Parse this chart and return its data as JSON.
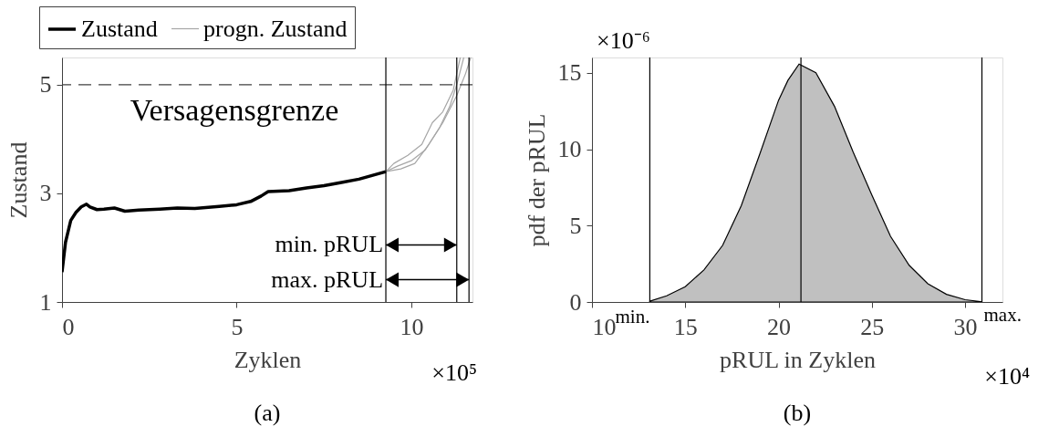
{
  "chart_data": [
    {
      "type": "line",
      "xlabel": "Zyklen",
      "ylabel": "Zustand",
      "xlim": [
        0,
        11.75
      ],
      "ylim": [
        1,
        5.5
      ],
      "xticks": [
        0,
        5,
        10
      ],
      "yticks": [
        1,
        3,
        5
      ],
      "grid": false,
      "legend": "top",
      "series": [
        {
          "name": "Zustand",
          "color": "#000000",
          "x": [
            0,
            0.1,
            0.25,
            0.4,
            0.55,
            0.7,
            0.8,
            1.0,
            1.2,
            1.5,
            1.8,
            2.2,
            2.8,
            3.3,
            3.8,
            4.5,
            5.0,
            5.4,
            5.7,
            5.9,
            6.5,
            7.0,
            7.5,
            8.0,
            8.5,
            9.27
          ],
          "values": [
            1.55,
            2.1,
            2.5,
            2.65,
            2.75,
            2.8,
            2.75,
            2.7,
            2.71,
            2.73,
            2.67,
            2.69,
            2.71,
            2.73,
            2.72,
            2.76,
            2.79,
            2.85,
            2.95,
            3.03,
            3.05,
            3.1,
            3.14,
            3.2,
            3.26,
            3.4
          ]
        },
        {
          "name": "progn. Zustand",
          "color": "#a6a6a6",
          "x": [
            9.27,
            9.6,
            10.0,
            10.4,
            10.8,
            11.1,
            11.3,
            11.5
          ],
          "values": [
            3.4,
            3.5,
            3.6,
            3.8,
            4.2,
            4.6,
            5.0,
            5.5
          ]
        },
        {
          "color": "#a6a6a6",
          "x": [
            9.27,
            9.7,
            10.1,
            10.5,
            10.9,
            11.3,
            11.55,
            11.7
          ],
          "values": [
            3.4,
            3.45,
            3.55,
            3.9,
            4.3,
            4.8,
            5.2,
            5.5
          ]
        },
        {
          "color": "#a6a6a6",
          "x": [
            9.27,
            9.5,
            9.9,
            10.3,
            10.6,
            10.9,
            11.2,
            11.4
          ],
          "values": [
            3.4,
            3.55,
            3.7,
            3.9,
            4.3,
            4.5,
            4.9,
            5.5
          ]
        }
      ],
      "ref_lines": [
        {
          "axis": "y",
          "value": 5,
          "label": "Versagensgrenze",
          "color": "#404040",
          "line_style": "dashed"
        },
        {
          "axis": "x",
          "value": 9.27,
          "color": "#000000"
        },
        {
          "axis": "x",
          "value": 11.3,
          "color": "#000000"
        },
        {
          "axis": "x",
          "value": 11.65,
          "color": "#000000"
        }
      ],
      "annotations": [
        {
          "text": "min. pRUL",
          "x": 9.27,
          "y": 2.05
        },
        {
          "text": "max. pRUL",
          "x": 9.27,
          "y": 1.41
        },
        "×10⁵",
        "(a)"
      ]
    },
    {
      "type": "area",
      "xlabel": "pRUL in Zyklen",
      "ylabel": "pdf der  pRUL",
      "xlim": [
        10,
        32
      ],
      "ylim": [
        0,
        16
      ],
      "xticks": [
        10,
        15,
        20,
        25,
        30
      ],
      "yticks": [
        0,
        5,
        10,
        15
      ],
      "grid": false,
      "legend": false,
      "series": [
        {
          "color": "#c0c0c0",
          "x": [
            13.1,
            14,
            15,
            16,
            17,
            18,
            19,
            20,
            20.5,
            21.1,
            22,
            23,
            24,
            25,
            26,
            27,
            28,
            29,
            30,
            30.9
          ],
          "values": [
            0.05,
            0.4,
            1.0,
            2.1,
            3.7,
            6.3,
            9.7,
            13.2,
            14.5,
            15.57,
            15.0,
            12.8,
            9.8,
            7.0,
            4.3,
            2.4,
            1.2,
            0.5,
            0.15,
            0.02
          ]
        }
      ],
      "ref_lines": [
        {
          "axis": "x",
          "value": 13.1,
          "color": "#000000"
        },
        {
          "axis": "x",
          "value": 21.2,
          "color": "#000000"
        },
        {
          "axis": "x",
          "value": 30.9,
          "color": "#000000"
        }
      ],
      "annotations": [
        {
          "text": "min.",
          "x": 13.1,
          "y": 0
        },
        {
          "text": "max.",
          "x": 30.9,
          "y": 0
        },
        "×10⁻⁶",
        "×10⁴",
        "(b)"
      ]
    }
  ]
}
